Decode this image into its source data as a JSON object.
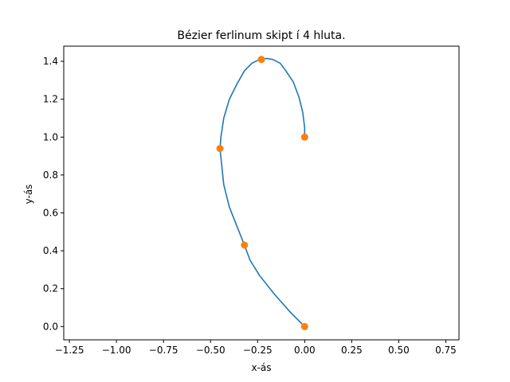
{
  "chart_data": {
    "type": "line",
    "title": "Bézier ferlinum skipt í 4 hluta.",
    "xlabel": "x-ás",
    "ylabel": "y-ás",
    "xlim": [
      -1.28,
      0.82
    ],
    "ylim": [
      -0.07,
      1.48
    ],
    "grid": false,
    "legend": "none",
    "xticks": [
      -1.25,
      -1.0,
      -0.75,
      -0.5,
      -0.25,
      0.0,
      0.25,
      0.5,
      0.75
    ],
    "xtick_labels": [
      "−1.25",
      "−1.00",
      "−0.75",
      "−0.50",
      "−0.25",
      "0.00",
      "0.25",
      "0.50",
      "0.75"
    ],
    "yticks": [
      0.0,
      0.2,
      0.4,
      0.6,
      0.8,
      1.0,
      1.2,
      1.4
    ],
    "ytick_labels": [
      "0.0",
      "0.2",
      "0.4",
      "0.6",
      "0.8",
      "1.0",
      "1.2",
      "1.4"
    ],
    "series": [
      {
        "kind": "curve",
        "color": "#1f77b4",
        "x": [
          0.0,
          -0.08,
          -0.16,
          -0.24,
          -0.29,
          -0.32,
          -0.36,
          -0.4,
          -0.43,
          -0.45,
          -0.445,
          -0.43,
          -0.4,
          -0.36,
          -0.32,
          -0.28,
          -0.24,
          -0.2,
          -0.17,
          -0.13,
          -0.1,
          -0.06,
          -0.03,
          -0.01,
          0.0,
          0.0
        ],
        "y": [
          0.0,
          0.08,
          0.17,
          0.27,
          0.35,
          0.43,
          0.53,
          0.63,
          0.75,
          0.94,
          1.0,
          1.1,
          1.2,
          1.28,
          1.35,
          1.39,
          1.41,
          1.415,
          1.41,
          1.39,
          1.35,
          1.29,
          1.21,
          1.13,
          1.05,
          1.0
        ]
      },
      {
        "kind": "points",
        "color": "#ff7f0e",
        "x": [
          0.0,
          -0.32,
          -0.45,
          -0.23,
          0.0
        ],
        "y": [
          0.0,
          0.43,
          0.94,
          1.41,
          1.0
        ]
      }
    ]
  }
}
